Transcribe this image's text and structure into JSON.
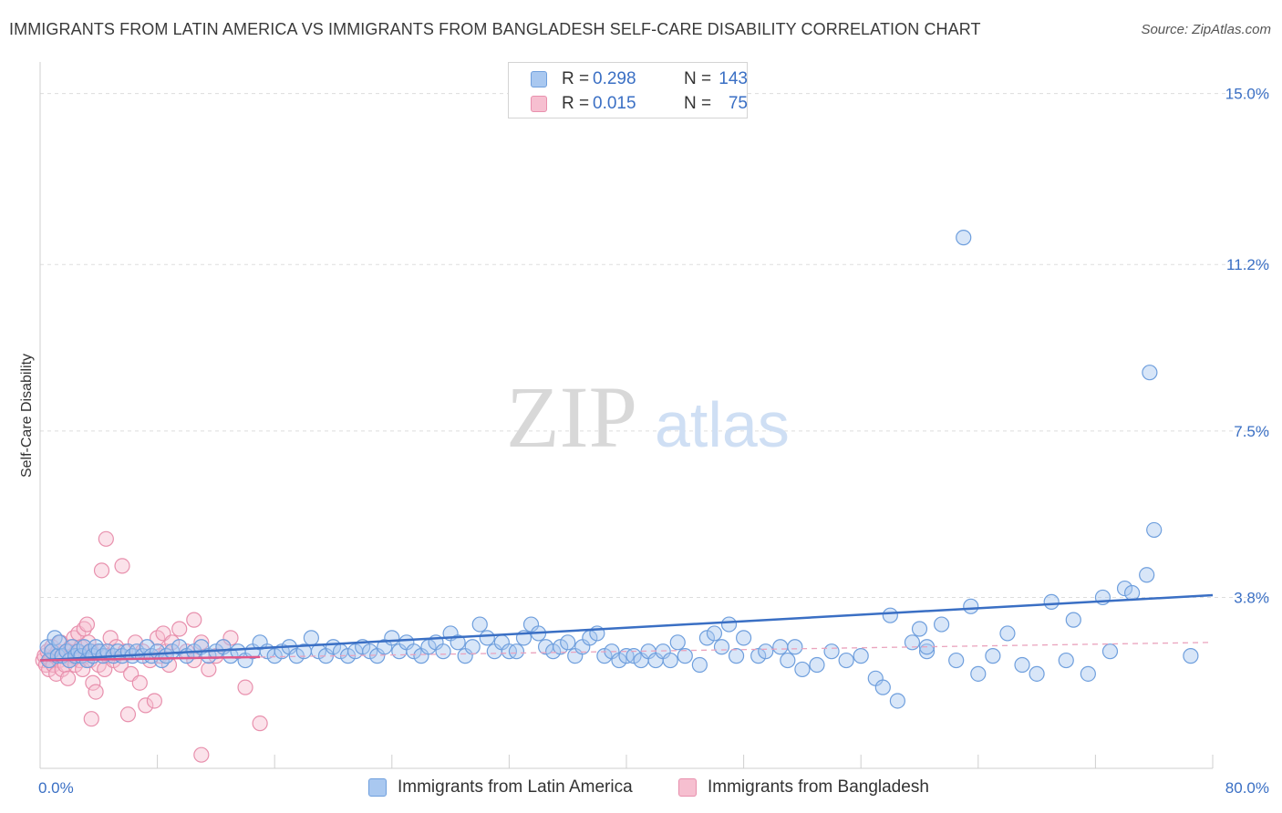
{
  "title": "IMMIGRANTS FROM LATIN AMERICA VS IMMIGRANTS FROM BANGLADESH SELF-CARE DISABILITY CORRELATION CHART",
  "source": "Source: ZipAtlas.com",
  "watermark": {
    "zip": "ZIP",
    "atlas": "atlas"
  },
  "legend": {
    "rows": [
      {
        "r_label": "R =",
        "r_value": "0.298",
        "n_label": "N =",
        "n_value": "143",
        "color": "#a9c8f0",
        "border": "#6f9fdd"
      },
      {
        "r_label": "R =",
        "r_value": "0.015",
        "n_label": "N =",
        "n_value": "75",
        "color": "#f6bfd0",
        "border": "#e890ad"
      }
    ]
  },
  "bottom_legend": [
    "Immigrants from Latin America",
    "Immigrants from Bangladesh"
  ],
  "colors": {
    "blue": "#3a6fc4",
    "blue_fill": "#a9c8f0",
    "pink": "#e0588a",
    "pink_fill": "#f6bfd0",
    "grid": "#dddddd"
  },
  "chart_data": {
    "type": "scatter",
    "title": "IMMIGRANTS FROM LATIN AMERICA VS IMMIGRANTS FROM BANGLADESH SELF-CARE DISABILITY CORRELATION CHART",
    "xlabel": "",
    "ylabel": "Self-Care Disability",
    "xlim": [
      0,
      80
    ],
    "ylim": [
      0,
      15.5
    ],
    "x_tick_labels": [
      "0.0%",
      "80.0%"
    ],
    "y_ticks": [
      3.8,
      7.5,
      11.2,
      15.0
    ],
    "y_tick_labels": [
      "3.8%",
      "7.5%",
      "11.2%",
      "15.0%"
    ],
    "grid": true,
    "legend_position": "top-center",
    "series": [
      {
        "name": "Immigrants from Latin America",
        "R": 0.298,
        "N": 143,
        "trend": {
          "x": [
            0,
            80
          ],
          "y": [
            2.4,
            3.85
          ]
        },
        "points": [
          [
            0.5,
            2.7
          ],
          [
            0.6,
            2.4
          ],
          [
            0.8,
            2.6
          ],
          [
            1.0,
            2.9
          ],
          [
            1.2,
            2.5
          ],
          [
            1.3,
            2.8
          ],
          [
            1.5,
            2.5
          ],
          [
            1.8,
            2.6
          ],
          [
            2.0,
            2.4
          ],
          [
            2.2,
            2.7
          ],
          [
            2.4,
            2.5
          ],
          [
            2.6,
            2.6
          ],
          [
            2.8,
            2.5
          ],
          [
            3.0,
            2.7
          ],
          [
            3.2,
            2.4
          ],
          [
            3.4,
            2.6
          ],
          [
            3.6,
            2.5
          ],
          [
            3.8,
            2.7
          ],
          [
            4.0,
            2.6
          ],
          [
            4.3,
            2.5
          ],
          [
            4.6,
            2.6
          ],
          [
            5.0,
            2.5
          ],
          [
            5.3,
            2.6
          ],
          [
            5.6,
            2.5
          ],
          [
            6.0,
            2.6
          ],
          [
            6.3,
            2.5
          ],
          [
            6.6,
            2.6
          ],
          [
            7.0,
            2.5
          ],
          [
            7.3,
            2.7
          ],
          [
            7.6,
            2.5
          ],
          [
            8.0,
            2.6
          ],
          [
            8.3,
            2.4
          ],
          [
            8.6,
            2.5
          ],
          [
            9.0,
            2.6
          ],
          [
            9.5,
            2.7
          ],
          [
            10.0,
            2.5
          ],
          [
            10.5,
            2.6
          ],
          [
            11.0,
            2.7
          ],
          [
            11.5,
            2.5
          ],
          [
            12.0,
            2.6
          ],
          [
            12.5,
            2.7
          ],
          [
            13.0,
            2.5
          ],
          [
            13.5,
            2.6
          ],
          [
            14.0,
            2.4
          ],
          [
            14.5,
            2.6
          ],
          [
            15.0,
            2.8
          ],
          [
            15.5,
            2.6
          ],
          [
            16.0,
            2.5
          ],
          [
            16.5,
            2.6
          ],
          [
            17.0,
            2.7
          ],
          [
            17.5,
            2.5
          ],
          [
            18.0,
            2.6
          ],
          [
            18.5,
            2.9
          ],
          [
            19.0,
            2.6
          ],
          [
            19.5,
            2.5
          ],
          [
            20.0,
            2.7
          ],
          [
            20.5,
            2.6
          ],
          [
            21.0,
            2.5
          ],
          [
            21.5,
            2.6
          ],
          [
            22.0,
            2.7
          ],
          [
            22.5,
            2.6
          ],
          [
            23.0,
            2.5
          ],
          [
            23.5,
            2.7
          ],
          [
            24.0,
            2.9
          ],
          [
            24.5,
            2.6
          ],
          [
            25.0,
            2.8
          ],
          [
            25.5,
            2.6
          ],
          [
            26.0,
            2.5
          ],
          [
            26.5,
            2.7
          ],
          [
            27.0,
            2.8
          ],
          [
            27.5,
            2.6
          ],
          [
            28.0,
            3.0
          ],
          [
            28.5,
            2.8
          ],
          [
            29.0,
            2.5
          ],
          [
            29.5,
            2.7
          ],
          [
            30.0,
            3.2
          ],
          [
            30.5,
            2.9
          ],
          [
            31.0,
            2.6
          ],
          [
            31.5,
            2.8
          ],
          [
            32.0,
            2.6
          ],
          [
            32.5,
            2.6
          ],
          [
            33.0,
            2.9
          ],
          [
            33.5,
            3.2
          ],
          [
            34.0,
            3.0
          ],
          [
            34.5,
            2.7
          ],
          [
            35.0,
            2.6
          ],
          [
            35.5,
            2.7
          ],
          [
            36.0,
            2.8
          ],
          [
            36.5,
            2.5
          ],
          [
            37.0,
            2.7
          ],
          [
            37.5,
            2.9
          ],
          [
            38.0,
            3.0
          ],
          [
            38.5,
            2.5
          ],
          [
            39.0,
            2.6
          ],
          [
            39.5,
            2.4
          ],
          [
            40.0,
            2.5
          ],
          [
            40.5,
            2.5
          ],
          [
            41.0,
            2.4
          ],
          [
            41.5,
            2.6
          ],
          [
            42.0,
            2.4
          ],
          [
            42.5,
            2.6
          ],
          [
            43.0,
            2.4
          ],
          [
            43.5,
            2.8
          ],
          [
            44.0,
            2.5
          ],
          [
            45.0,
            2.3
          ],
          [
            45.5,
            2.9
          ],
          [
            46.0,
            3.0
          ],
          [
            46.5,
            2.7
          ],
          [
            47.0,
            3.2
          ],
          [
            47.5,
            2.5
          ],
          [
            48.0,
            2.9
          ],
          [
            49.0,
            2.5
          ],
          [
            49.5,
            2.6
          ],
          [
            50.5,
            2.7
          ],
          [
            51.0,
            2.4
          ],
          [
            51.5,
            2.7
          ],
          [
            52.0,
            2.2
          ],
          [
            53.0,
            2.3
          ],
          [
            54.0,
            2.6
          ],
          [
            55.0,
            2.4
          ],
          [
            56.0,
            2.5
          ],
          [
            57.0,
            2.0
          ],
          [
            57.5,
            1.8
          ],
          [
            58.0,
            3.4
          ],
          [
            59.5,
            2.8
          ],
          [
            60.0,
            3.1
          ],
          [
            60.5,
            2.6
          ],
          [
            61.5,
            3.2
          ],
          [
            62.5,
            2.4
          ],
          [
            63.5,
            3.6
          ],
          [
            64.0,
            2.1
          ],
          [
            65.0,
            2.5
          ],
          [
            66.0,
            3.0
          ],
          [
            67.0,
            2.3
          ],
          [
            68.0,
            2.1
          ],
          [
            69.0,
            3.7
          ],
          [
            70.0,
            2.4
          ],
          [
            70.5,
            3.3
          ],
          [
            71.5,
            2.1
          ],
          [
            72.5,
            3.8
          ],
          [
            73.0,
            2.6
          ],
          [
            74.0,
            4.0
          ],
          [
            74.5,
            3.9
          ],
          [
            75.5,
            4.3
          ],
          [
            76.0,
            5.3
          ],
          [
            78.5,
            2.5
          ],
          [
            63.0,
            11.8
          ],
          [
            75.7,
            8.8
          ],
          [
            58.5,
            1.5
          ],
          [
            60.5,
            2.7
          ]
        ]
      },
      {
        "name": "Immigrants from Bangladesh",
        "R": 0.015,
        "N": 75,
        "trend": {
          "x": [
            0,
            80
          ],
          "y": [
            2.4,
            2.8
          ]
        },
        "points": [
          [
            0.2,
            2.4
          ],
          [
            0.3,
            2.5
          ],
          [
            0.4,
            2.3
          ],
          [
            0.5,
            2.6
          ],
          [
            0.6,
            2.2
          ],
          [
            0.7,
            2.4
          ],
          [
            0.8,
            2.7
          ],
          [
            0.9,
            2.3
          ],
          [
            1.0,
            2.5
          ],
          [
            1.1,
            2.1
          ],
          [
            1.2,
            2.6
          ],
          [
            1.3,
            2.4
          ],
          [
            1.4,
            2.8
          ],
          [
            1.5,
            2.2
          ],
          [
            1.6,
            2.5
          ],
          [
            1.7,
            2.3
          ],
          [
            1.8,
            2.6
          ],
          [
            1.9,
            2.0
          ],
          [
            2.0,
            2.4
          ],
          [
            2.1,
            2.7
          ],
          [
            2.2,
            2.5
          ],
          [
            2.3,
            2.9
          ],
          [
            2.4,
            2.3
          ],
          [
            2.5,
            2.6
          ],
          [
            2.6,
            3.0
          ],
          [
            2.7,
            2.4
          ],
          [
            2.8,
            2.7
          ],
          [
            2.9,
            2.2
          ],
          [
            3.0,
            3.1
          ],
          [
            3.1,
            2.5
          ],
          [
            3.2,
            3.2
          ],
          [
            3.3,
            2.8
          ],
          [
            3.4,
            2.4
          ],
          [
            3.5,
            2.6
          ],
          [
            3.6,
            1.9
          ],
          [
            3.8,
            1.7
          ],
          [
            4.0,
            2.3
          ],
          [
            4.2,
            2.6
          ],
          [
            4.4,
            2.2
          ],
          [
            4.6,
            2.5
          ],
          [
            4.8,
            2.9
          ],
          [
            5.0,
            2.4
          ],
          [
            5.2,
            2.7
          ],
          [
            5.5,
            2.3
          ],
          [
            5.8,
            2.6
          ],
          [
            6.0,
            1.2
          ],
          [
            6.2,
            2.1
          ],
          [
            6.5,
            2.8
          ],
          [
            6.8,
            1.9
          ],
          [
            7.0,
            2.6
          ],
          [
            7.2,
            1.4
          ],
          [
            7.5,
            2.4
          ],
          [
            7.8,
            1.5
          ],
          [
            8.0,
            2.9
          ],
          [
            8.2,
            2.5
          ],
          [
            8.4,
            3.0
          ],
          [
            8.6,
            2.6
          ],
          [
            8.8,
            2.3
          ],
          [
            9.0,
            2.8
          ],
          [
            9.5,
            3.1
          ],
          [
            10.0,
            2.6
          ],
          [
            10.5,
            2.4
          ],
          [
            11.0,
            2.8
          ],
          [
            11.5,
            2.2
          ],
          [
            12.0,
            2.5
          ],
          [
            12.5,
            2.7
          ],
          [
            13.0,
            2.9
          ],
          [
            14.0,
            1.8
          ],
          [
            15.0,
            1.0
          ],
          [
            3.5,
            1.1
          ],
          [
            4.5,
            5.1
          ],
          [
            5.6,
            4.5
          ],
          [
            4.2,
            4.4
          ],
          [
            10.5,
            3.3
          ],
          [
            11.0,
            0.3
          ]
        ]
      }
    ]
  }
}
